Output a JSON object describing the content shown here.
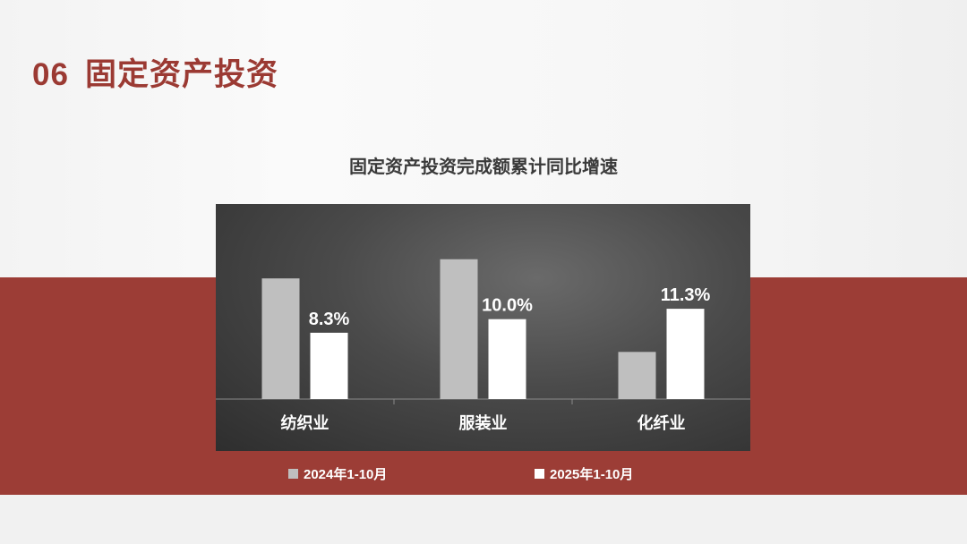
{
  "slide": {
    "number": "06",
    "title": "固定资产投资"
  },
  "chart_data": {
    "type": "bar",
    "title": "固定资产投资完成额累计同比增速",
    "categories": [
      "纺织业",
      "服装业",
      "化纤业"
    ],
    "series": [
      {
        "name": "2024年1-10月",
        "values": [
          15.1,
          17.5,
          5.9
        ],
        "color": "#bfbfbf",
        "labels": [
          "",
          "",
          ""
        ]
      },
      {
        "name": "2025年1-10月",
        "values": [
          8.3,
          10.0,
          11.3
        ],
        "color": "#ffffff",
        "labels": [
          "8.3%",
          "10.0%",
          "11.3%"
        ]
      }
    ],
    "legend": "bottom",
    "grid": false,
    "ylim": [
      0,
      20
    ]
  },
  "colors": {
    "accent": "#9c3d36"
  }
}
